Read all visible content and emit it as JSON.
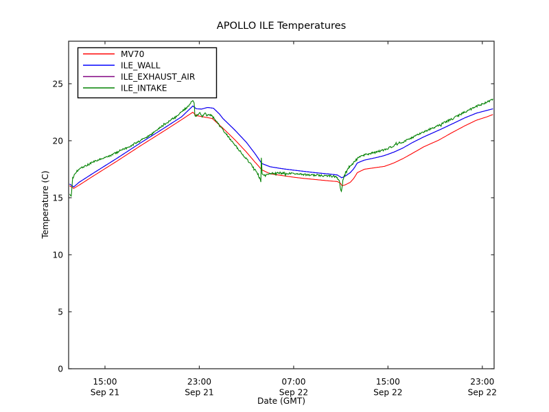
{
  "chart_data": {
    "type": "line",
    "title": "APOLLO ILE Temperatures",
    "xlabel": "Date (GMT)",
    "ylabel": "Temperature (C)",
    "x_unit": "hours_since_Sep21_1200_GMT",
    "xlim": [
      -0.084,
      36.0
    ],
    "ylim": [
      0,
      28.73
    ],
    "grid": false,
    "legend_position": "upper left",
    "frame_color": "#2e2e2e",
    "background_color": "#ffffff",
    "yticks": [
      {
        "v": 0,
        "label": "0"
      },
      {
        "v": 5,
        "label": "5"
      },
      {
        "v": 10,
        "label": "10"
      },
      {
        "v": 15,
        "label": "15"
      },
      {
        "v": 20,
        "label": "20"
      },
      {
        "v": 25,
        "label": "25"
      }
    ],
    "xticks": [
      {
        "t": 3,
        "time": "15:00",
        "date": "Sep 21"
      },
      {
        "t": 11,
        "time": "23:00",
        "date": "Sep 21"
      },
      {
        "t": 19,
        "time": "07:00",
        "date": "Sep 22"
      },
      {
        "t": 27,
        "time": "15:00",
        "date": "Sep 22"
      },
      {
        "t": 35,
        "time": "23:00",
        "date": "Sep 22"
      }
    ],
    "series": [
      {
        "name": "MV70",
        "color": "#ff0000",
        "zorder": 2,
        "noise": 0,
        "keypoints": [
          [
            0,
            16.05
          ],
          [
            0.35,
            15.82
          ],
          [
            0.8,
            16.1
          ],
          [
            2,
            16.9
          ],
          [
            4,
            18.2
          ],
          [
            6,
            19.55
          ],
          [
            8,
            20.85
          ],
          [
            9.5,
            21.85
          ],
          [
            10.45,
            22.5
          ],
          [
            10.75,
            22.2
          ],
          [
            11.3,
            22.1
          ],
          [
            12.1,
            21.95
          ],
          [
            13,
            21.1
          ],
          [
            14,
            20.1
          ],
          [
            15,
            19.0
          ],
          [
            15.7,
            18.15
          ],
          [
            16.3,
            17.45
          ],
          [
            17,
            17.1
          ],
          [
            18,
            16.95
          ],
          [
            19,
            16.8
          ],
          [
            20,
            16.68
          ],
          [
            21,
            16.58
          ],
          [
            22,
            16.48
          ],
          [
            22.7,
            16.42
          ],
          [
            22.95,
            16.3
          ],
          [
            23.1,
            16.05
          ],
          [
            23.35,
            16.12
          ],
          [
            23.8,
            16.35
          ],
          [
            24.1,
            16.7
          ],
          [
            24.4,
            17.2
          ],
          [
            25,
            17.5
          ],
          [
            26,
            17.65
          ],
          [
            26.7,
            17.75
          ],
          [
            27.5,
            18.05
          ],
          [
            28.3,
            18.45
          ],
          [
            29,
            18.85
          ],
          [
            30,
            19.45
          ],
          [
            31.3,
            20.05
          ],
          [
            32.5,
            20.75
          ],
          [
            33.5,
            21.3
          ],
          [
            34.5,
            21.8
          ],
          [
            35.4,
            22.1
          ],
          [
            35.9,
            22.3
          ]
        ]
      },
      {
        "name": "ILE_WALL",
        "color": "#0000ff",
        "zorder": 3,
        "noise": 0,
        "keypoints": [
          [
            0,
            16.2
          ],
          [
            0.35,
            15.95
          ],
          [
            0.8,
            16.35
          ],
          [
            2,
            17.15
          ],
          [
            4,
            18.45
          ],
          [
            6,
            19.8
          ],
          [
            8,
            21.1
          ],
          [
            9.5,
            22.1
          ],
          [
            10.45,
            23.05
          ],
          [
            10.75,
            22.8
          ],
          [
            11.2,
            22.78
          ],
          [
            11.7,
            22.92
          ],
          [
            12.2,
            22.85
          ],
          [
            12.7,
            22.35
          ],
          [
            13,
            21.95
          ],
          [
            14,
            20.95
          ],
          [
            15,
            19.85
          ],
          [
            15.7,
            18.9
          ],
          [
            16.3,
            18.0
          ],
          [
            17,
            17.72
          ],
          [
            18,
            17.55
          ],
          [
            19,
            17.42
          ],
          [
            20,
            17.3
          ],
          [
            21,
            17.18
          ],
          [
            22,
            17.08
          ],
          [
            22.7,
            17.0
          ],
          [
            23.08,
            16.75
          ],
          [
            23.35,
            16.88
          ],
          [
            23.8,
            17.2
          ],
          [
            24.1,
            17.55
          ],
          [
            24.4,
            18.05
          ],
          [
            25,
            18.3
          ],
          [
            26,
            18.52
          ],
          [
            26.7,
            18.7
          ],
          [
            27.5,
            19.0
          ],
          [
            28.3,
            19.38
          ],
          [
            29,
            19.8
          ],
          [
            30,
            20.32
          ],
          [
            31.3,
            20.92
          ],
          [
            32.5,
            21.5
          ],
          [
            33.5,
            22.0
          ],
          [
            34.5,
            22.42
          ],
          [
            35.9,
            22.8
          ]
        ]
      },
      {
        "name": "ILE_EXHAUST_AIR",
        "color": "#800080",
        "zorder": 1,
        "noise": 0,
        "hidden_behind": "ILE_WALL",
        "keypoints": [
          [
            0,
            16.2
          ],
          [
            0.35,
            15.95
          ],
          [
            0.8,
            16.35
          ],
          [
            2,
            17.15
          ],
          [
            4,
            18.45
          ],
          [
            6,
            19.8
          ],
          [
            8,
            21.1
          ],
          [
            9.5,
            22.1
          ],
          [
            10.45,
            23.05
          ],
          [
            10.75,
            22.8
          ],
          [
            11.2,
            22.78
          ],
          [
            11.7,
            22.92
          ],
          [
            12.2,
            22.85
          ],
          [
            12.7,
            22.35
          ],
          [
            13,
            21.95
          ],
          [
            14,
            20.95
          ],
          [
            15,
            19.85
          ],
          [
            15.7,
            18.9
          ],
          [
            16.3,
            18.0
          ],
          [
            17,
            17.72
          ],
          [
            18,
            17.55
          ],
          [
            19,
            17.42
          ],
          [
            20,
            17.3
          ],
          [
            21,
            17.18
          ],
          [
            22,
            17.08
          ],
          [
            22.7,
            17.0
          ],
          [
            23.08,
            16.75
          ],
          [
            23.35,
            16.88
          ],
          [
            23.8,
            17.2
          ],
          [
            24.1,
            17.55
          ],
          [
            24.4,
            18.05
          ],
          [
            25,
            18.3
          ],
          [
            26,
            18.52
          ],
          [
            26.7,
            18.7
          ],
          [
            27.5,
            19.0
          ],
          [
            28.3,
            19.38
          ],
          [
            29,
            19.8
          ],
          [
            30,
            20.32
          ],
          [
            31.3,
            20.92
          ],
          [
            32.5,
            21.5
          ],
          [
            33.5,
            22.0
          ],
          [
            34.5,
            22.42
          ],
          [
            35.9,
            22.8
          ]
        ]
      },
      {
        "name": "ILE_INTAKE",
        "color": "#008000",
        "zorder": 4,
        "noise": 0.085,
        "keypoints": [
          [
            0,
            15.3
          ],
          [
            0.14,
            15.2
          ],
          [
            0.26,
            16.7
          ],
          [
            0.5,
            17.2
          ],
          [
            0.8,
            17.5
          ],
          [
            2,
            18.15
          ],
          [
            3,
            18.5
          ],
          [
            4,
            18.95
          ],
          [
            5,
            19.45
          ],
          [
            6,
            20.0
          ],
          [
            7,
            20.6
          ],
          [
            8,
            21.4
          ],
          [
            9,
            22.1
          ],
          [
            9.8,
            22.8
          ],
          [
            10.2,
            23.2
          ],
          [
            10.45,
            23.55
          ],
          [
            10.56,
            23.4
          ],
          [
            10.62,
            22.2
          ],
          [
            10.85,
            22.25
          ],
          [
            11.05,
            22.4
          ],
          [
            11.25,
            22.1
          ],
          [
            11.45,
            22.45
          ],
          [
            11.7,
            22.2
          ],
          [
            11.95,
            22.3
          ],
          [
            12.25,
            21.95
          ],
          [
            12.8,
            21.2
          ],
          [
            13.5,
            20.3
          ],
          [
            14.2,
            19.4
          ],
          [
            15,
            18.4
          ],
          [
            15.5,
            17.75
          ],
          [
            15.9,
            17.2
          ],
          [
            16.12,
            16.7
          ],
          [
            16.22,
            16.42
          ],
          [
            16.26,
            18.7
          ],
          [
            16.32,
            17.15
          ],
          [
            16.6,
            16.95
          ],
          [
            17,
            17.12
          ],
          [
            18,
            17.18
          ],
          [
            19,
            17.1
          ],
          [
            20,
            17.02
          ],
          [
            21,
            16.97
          ],
          [
            22,
            16.9
          ],
          [
            22.6,
            16.85
          ],
          [
            22.88,
            16.45
          ],
          [
            23.0,
            15.6
          ],
          [
            23.05,
            15.5
          ],
          [
            23.18,
            16.5
          ],
          [
            23.4,
            17.2
          ],
          [
            23.7,
            17.7
          ],
          [
            24.1,
            18.1
          ],
          [
            24.4,
            18.5
          ],
          [
            25,
            18.75
          ],
          [
            26,
            19.0
          ],
          [
            26.7,
            19.2
          ],
          [
            27.5,
            19.55
          ],
          [
            28.3,
            19.9
          ],
          [
            29,
            20.25
          ],
          [
            30,
            20.75
          ],
          [
            31.3,
            21.35
          ],
          [
            32.5,
            21.95
          ],
          [
            33.5,
            22.5
          ],
          [
            34.5,
            23.0
          ],
          [
            35.9,
            23.6
          ]
        ]
      }
    ]
  }
}
